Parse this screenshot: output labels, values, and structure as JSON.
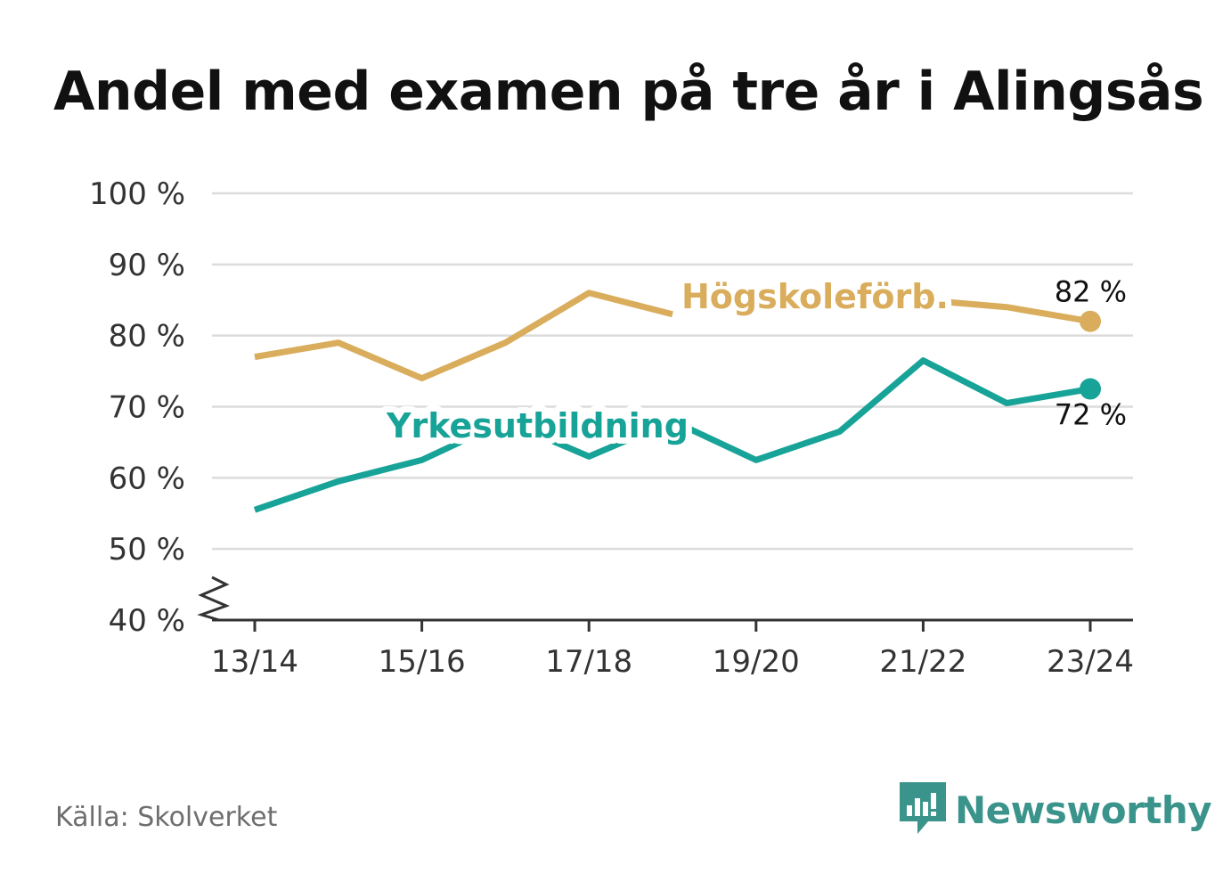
{
  "title": "Andel med examen på tre år i Alingsås",
  "source": "Källa: Skolverket",
  "brand": "Newsworthy",
  "colors": {
    "hogskole": "#d9ad5b",
    "yrke": "#17a398",
    "grid": "#dcdcdc",
    "axis": "#333333",
    "brand": "#3a948b"
  },
  "chart_data": {
    "type": "line",
    "x": [
      "13/14",
      "14/15",
      "15/16",
      "16/17",
      "17/18",
      "18/19",
      "19/20",
      "20/21",
      "21/22",
      "22/23",
      "23/24"
    ],
    "x_tick_labels": [
      "13/14",
      "15/16",
      "17/18",
      "19/20",
      "21/22",
      "23/24"
    ],
    "y_ticks": [
      "40 %",
      "50 %",
      "60 %",
      "70 %",
      "80 %",
      "90 %",
      "100 %"
    ],
    "ylim": [
      40,
      100
    ],
    "y_axis_break": true,
    "grid": true,
    "series": [
      {
        "name": "Högskoleförb.",
        "values": [
          77,
          79,
          74,
          79,
          86,
          83,
          null,
          null,
          85,
          84,
          82
        ],
        "end_label": "82 %"
      },
      {
        "name": "Yrkesutbildning",
        "values": [
          55.5,
          59.5,
          62.5,
          68,
          63,
          68,
          62.5,
          66.5,
          76.5,
          70.5,
          72.5
        ],
        "end_label": "72 %"
      }
    ]
  }
}
